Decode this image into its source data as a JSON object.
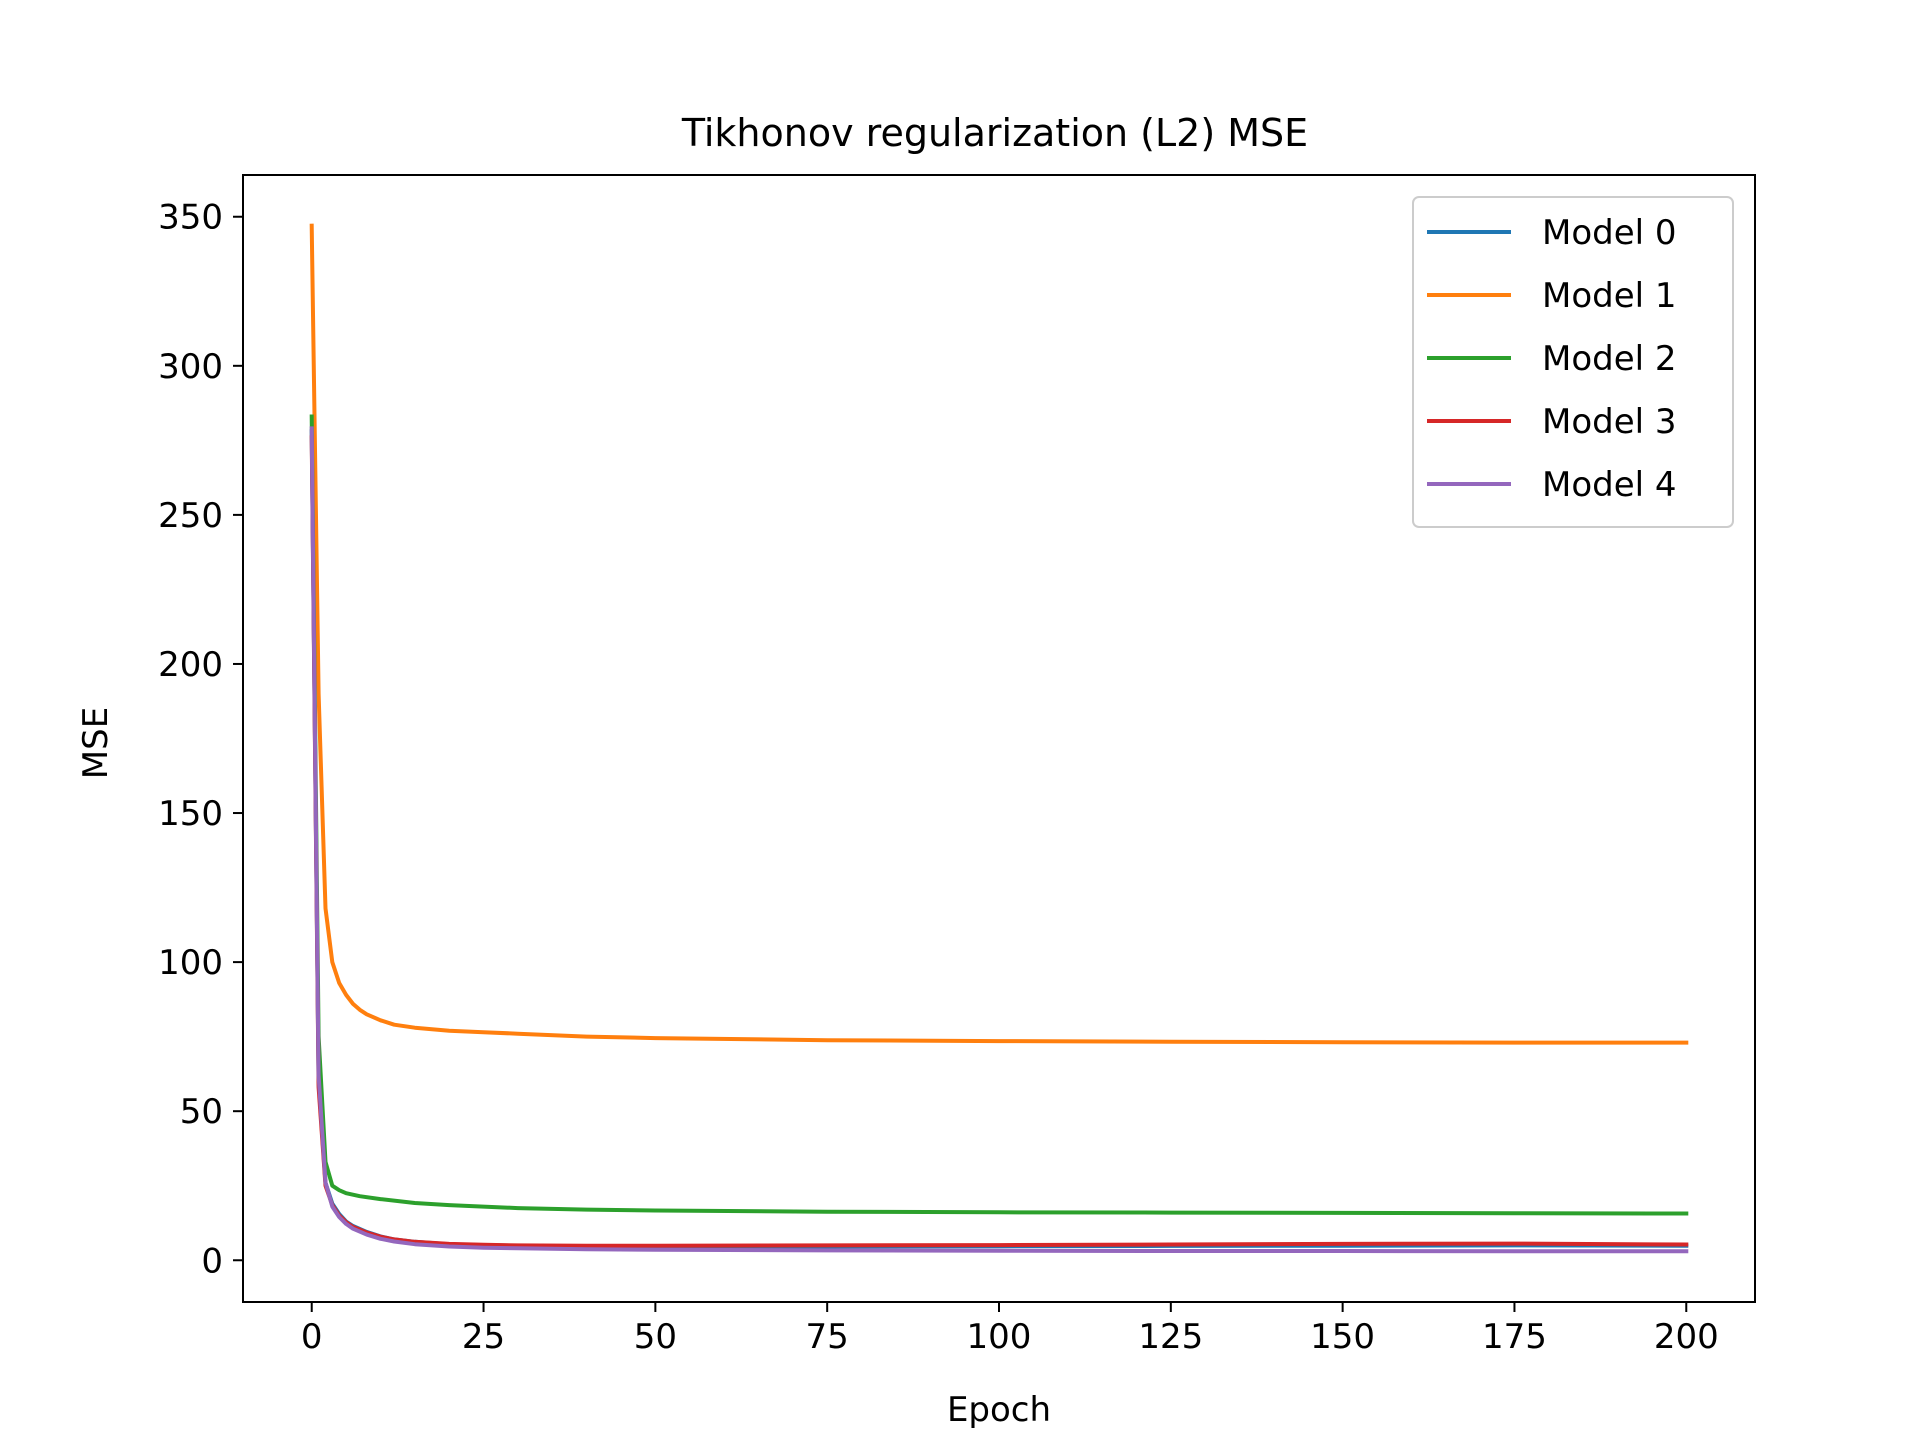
{
  "chart_data": {
    "type": "line",
    "title": "Tikhonov regularization (L2) MSE",
    "xlabel": "Epoch",
    "ylabel": "MSE",
    "xlim": [
      -10,
      210
    ],
    "ylim": [
      -14,
      364
    ],
    "xticks": [
      0,
      25,
      50,
      75,
      100,
      125,
      150,
      175,
      200
    ],
    "yticks": [
      0,
      50,
      100,
      150,
      200,
      250,
      300,
      350
    ],
    "grid": false,
    "legend_position": "top-right",
    "series": [
      {
        "name": "Model 0",
        "color": "#1f77b4",
        "x": [
          0,
          1,
          2,
          3,
          4,
          5,
          6,
          8,
          10,
          12,
          15,
          20,
          25,
          30,
          40,
          50,
          75,
          100,
          125,
          150,
          175,
          200
        ],
        "y": [
          278,
          60,
          26,
          19,
          15.5,
          13,
          11.5,
          9.5,
          8,
          7,
          6.2,
          5.4,
          5.1,
          4.9,
          4.7,
          4.6,
          4.6,
          4.7,
          4.8,
          4.9,
          5.0,
          4.9
        ]
      },
      {
        "name": "Model 1",
        "color": "#ff7f0e",
        "x": [
          0,
          1,
          2,
          3,
          4,
          5,
          6,
          7,
          8,
          10,
          12,
          15,
          20,
          25,
          30,
          40,
          50,
          75,
          100,
          125,
          150,
          175,
          200
        ],
        "y": [
          347,
          190,
          118,
          100,
          93,
          89,
          86,
          84,
          82.5,
          80.5,
          79,
          78,
          77,
          76.5,
          76,
          75,
          74.5,
          73.8,
          73.5,
          73.3,
          73.1,
          73.0,
          73.0
        ]
      },
      {
        "name": "Model 2",
        "color": "#2ca02c",
        "x": [
          0,
          1,
          2,
          3,
          4,
          5,
          7,
          10,
          15,
          20,
          30,
          40,
          50,
          75,
          100,
          125,
          150,
          175,
          200
        ],
        "y": [
          283,
          75,
          33,
          25,
          23.5,
          22.5,
          21.5,
          20.5,
          19.2,
          18.5,
          17.5,
          17,
          16.7,
          16.3,
          16.1,
          16.0,
          15.9,
          15.8,
          15.7
        ]
      },
      {
        "name": "Model 3",
        "color": "#d62728",
        "x": [
          0,
          1,
          2,
          3,
          4,
          5,
          6,
          8,
          10,
          12,
          15,
          20,
          25,
          30,
          40,
          50,
          75,
          100,
          125,
          150,
          175,
          200
        ],
        "y": [
          276,
          58,
          25,
          18.5,
          15,
          12.8,
          11.2,
          9.3,
          7.9,
          7.0,
          6.2,
          5.5,
          5.2,
          5.0,
          4.9,
          4.9,
          5.0,
          5.1,
          5.3,
          5.5,
          5.6,
          5.3
        ]
      },
      {
        "name": "Model 4",
        "color": "#9467bd",
        "x": [
          0,
          1,
          2,
          3,
          4,
          5,
          6,
          8,
          10,
          12,
          15,
          20,
          25,
          30,
          40,
          50,
          75,
          100,
          125,
          150,
          175,
          200
        ],
        "y": [
          279,
          62,
          26,
          18,
          14.5,
          12.2,
          10.6,
          8.6,
          7.2,
          6.3,
          5.4,
          4.6,
          4.2,
          4.0,
          3.7,
          3.5,
          3.3,
          3.2,
          3.1,
          3.1,
          3.0,
          3.0
        ]
      }
    ]
  }
}
